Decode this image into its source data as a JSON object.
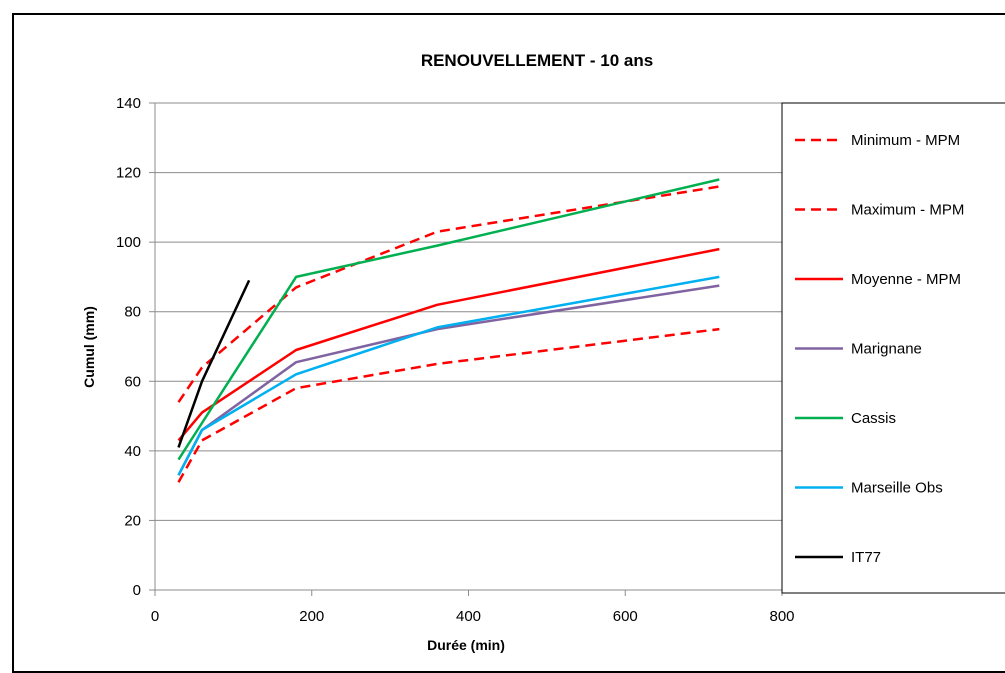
{
  "chart_data": {
    "type": "line",
    "title": "RENOUVELLEMENT - 10 ans",
    "xlabel": "Durée (min)",
    "ylabel": "Cumul (mm)",
    "xlim": [
      0,
      800
    ],
    "ylim": [
      0,
      140
    ],
    "x_ticks": [
      "0",
      "200",
      "400",
      "600",
      "800"
    ],
    "y_ticks": [
      "0",
      "20",
      "40",
      "60",
      "80",
      "100",
      "120",
      "140"
    ],
    "grid": true,
    "legend_position": "right",
    "series": [
      {
        "name": "Minimum - MPM",
        "color": "#ff0000",
        "dash": true,
        "x": [
          30,
          60,
          180,
          360,
          720
        ],
        "y": [
          54,
          64,
          87,
          103,
          116
        ]
      },
      {
        "name": "Maximum - MPM",
        "color": "#ff0000",
        "dash": true,
        "x": [
          30,
          60,
          180,
          360,
          720
        ],
        "y": [
          31,
          43,
          58,
          65,
          75
        ]
      },
      {
        "name": "Moyenne - MPM",
        "color": "#ff0000",
        "dash": false,
        "x": [
          30,
          60,
          180,
          360,
          720
        ],
        "y": [
          43,
          51,
          69,
          82,
          98
        ]
      },
      {
        "name": "Marignane",
        "color": "#8064a2",
        "dash": false,
        "x": [
          30,
          60,
          180,
          360,
          720
        ],
        "y": [
          33,
          46,
          65.5,
          75,
          87.5
        ]
      },
      {
        "name": "Cassis",
        "color": "#00b050",
        "dash": false,
        "x": [
          30,
          60,
          180,
          360,
          720
        ],
        "y": [
          37.5,
          48,
          90,
          99,
          118
        ]
      },
      {
        "name": "Marseille Obs",
        "color": "#00b0f0",
        "dash": false,
        "x": [
          30,
          60,
          180,
          360,
          720
        ],
        "y": [
          33,
          46,
          62,
          75.5,
          90
        ]
      },
      {
        "name": "IT77",
        "color": "#000000",
        "dash": false,
        "x": [
          30,
          60,
          120
        ],
        "y": [
          41,
          60,
          89
        ]
      }
    ]
  }
}
